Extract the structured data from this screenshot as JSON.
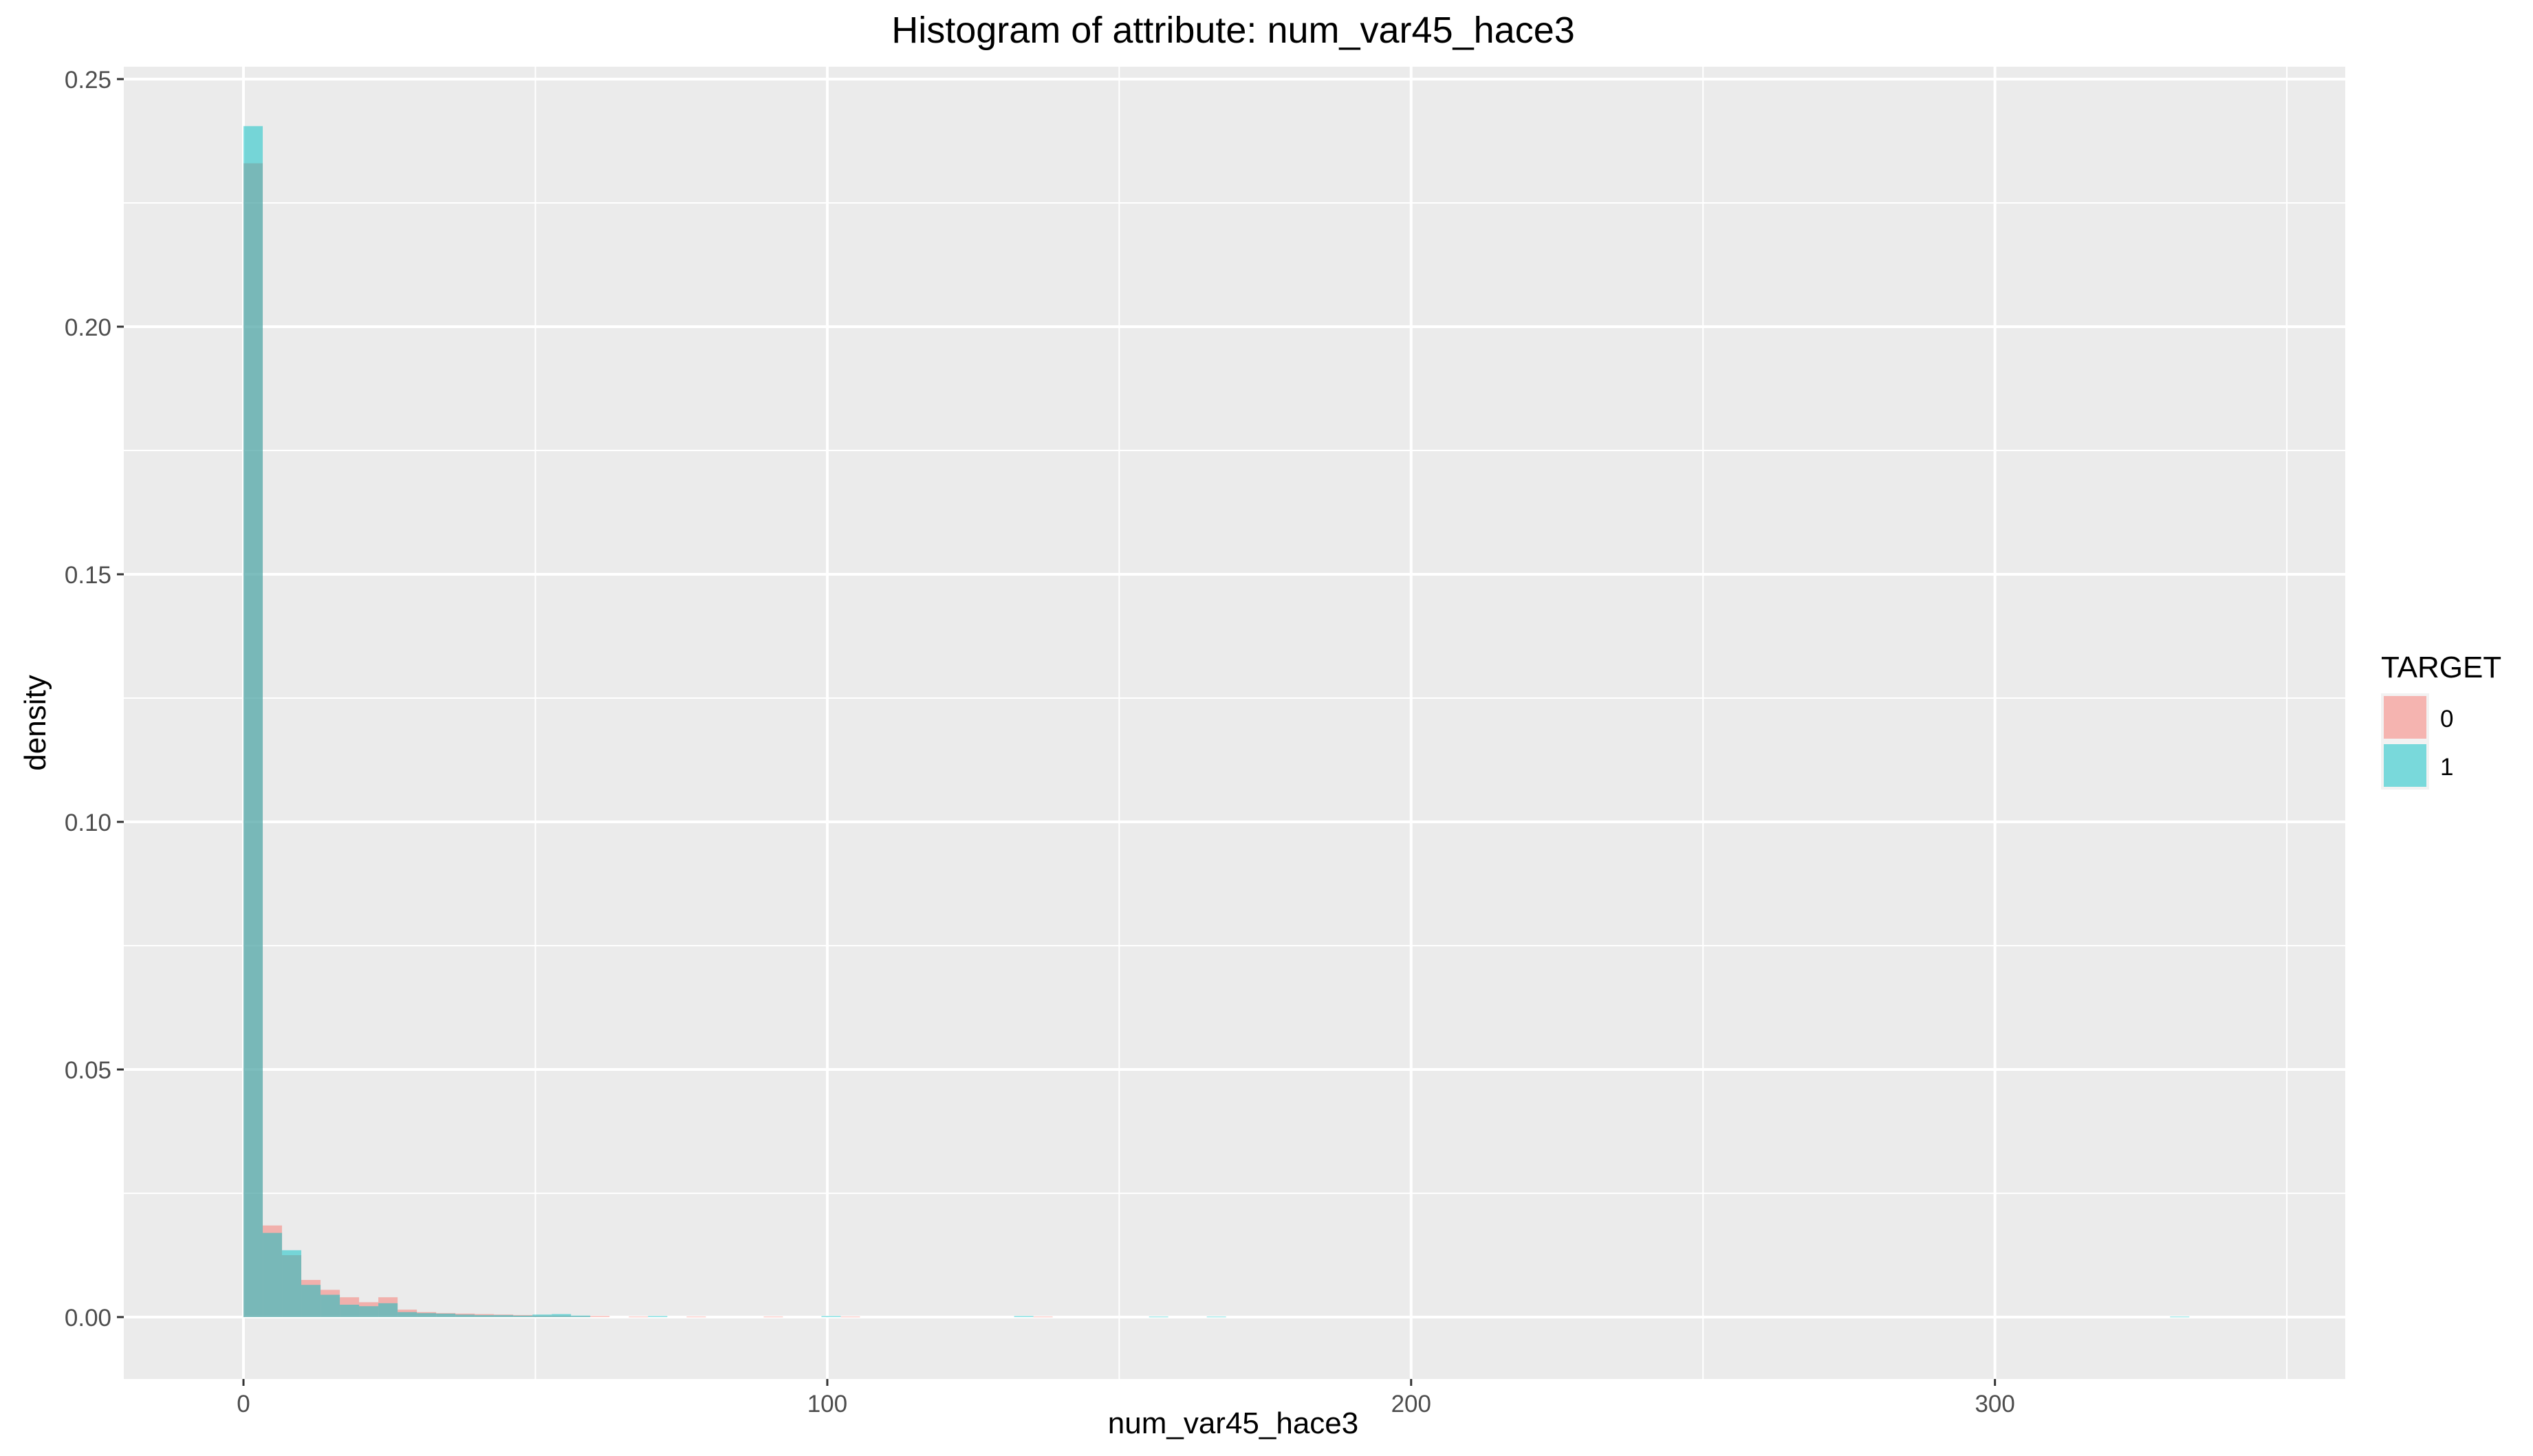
{
  "chart_data": {
    "type": "bar",
    "title": "Histogram of attribute: num_var45_hace3",
    "xlabel": "num_var45_hace3",
    "ylabel": "density",
    "xlim": [
      -20.5,
      360
    ],
    "ylim": [
      -0.0125,
      0.2525
    ],
    "x_ticks": [
      0,
      100,
      200,
      300
    ],
    "y_ticks": [
      0.0,
      0.05,
      0.1,
      0.15,
      0.2,
      0.25
    ],
    "x_tick_labels": [
      "0",
      "100",
      "200",
      "300"
    ],
    "y_tick_labels": [
      "0.00",
      "0.05",
      "0.10",
      "0.15",
      "0.20",
      "0.25"
    ],
    "bin_width": 3.3,
    "grid": true,
    "legend": {
      "title": "TARGET",
      "position": "right"
    },
    "series": [
      {
        "name": "0",
        "color": "#F8766D",
        "bin_starts": [
          0,
          3.3,
          6.6,
          9.9,
          13.2,
          16.5,
          19.8,
          23.1,
          26.4,
          29.7,
          33,
          36.3,
          39.6,
          42.9,
          46.2,
          49.5,
          52.8,
          56.1,
          59.4,
          66,
          75.9,
          89.1,
          102.3,
          135.3
        ],
        "values": [
          0.233,
          0.0185,
          0.0125,
          0.0075,
          0.0055,
          0.004,
          0.003,
          0.004,
          0.0015,
          0.001,
          0.0008,
          0.0007,
          0.0006,
          0.0005,
          0.0004,
          0.0003,
          0.0003,
          0.0002,
          0.0002,
          0.0001,
          0.0001,
          0.0001,
          0.0001,
          0.0001
        ]
      },
      {
        "name": "1",
        "color": "#00BFC4",
        "bin_starts": [
          0,
          3.3,
          6.6,
          9.9,
          13.2,
          16.5,
          19.8,
          23.1,
          26.4,
          29.7,
          33,
          36.3,
          39.6,
          42.9,
          46.2,
          49.5,
          52.8,
          56.1,
          69.3,
          99,
          132,
          155.1,
          165,
          330
        ],
        "values": [
          0.2405,
          0.017,
          0.0135,
          0.0065,
          0.0045,
          0.0025,
          0.0022,
          0.0028,
          0.001,
          0.0008,
          0.0007,
          0.0005,
          0.0004,
          0.0004,
          0.0003,
          0.0005,
          0.0006,
          0.0003,
          0.0002,
          0.0002,
          0.0002,
          0.0001,
          0.0001,
          0.0001
        ]
      }
    ]
  }
}
